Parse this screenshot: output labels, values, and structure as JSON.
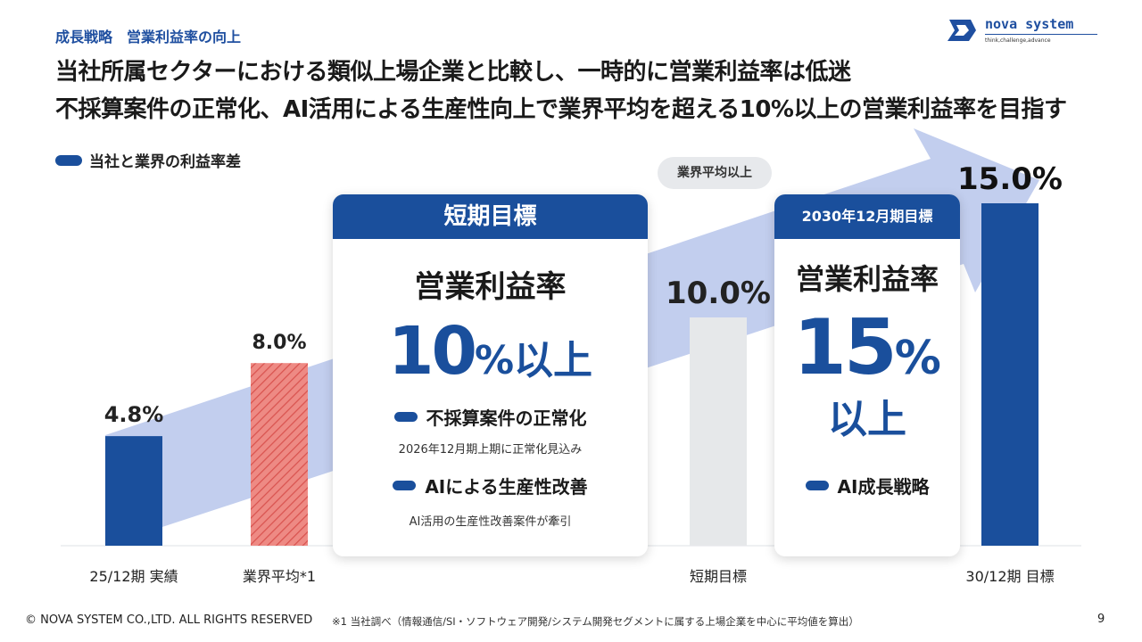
{
  "header": {
    "breadcrumb": "成長戦略　営業利益率の向上",
    "logo_name": "nova system",
    "logo_tagline": "think,challenge,advance",
    "headline_line1": "当社所属セクターにおける類似上場企業と比較し、一時的に営業利益率は低迷",
    "headline_line2": "不採算案件の正常化、AI活用による生産性向上で業界平均を超える10%以上の営業利益率を目指す"
  },
  "legend": {
    "label": "当社と業界の利益率差"
  },
  "badge_avg": "業界平均以上",
  "card_short": {
    "header": "短期目標",
    "title": "営業利益率",
    "big_number": "10",
    "big_suffix": "%以上",
    "item1": "不採算案件の正常化",
    "item1_sub": "2026年12月期上期に正常化見込み",
    "item2": "AIによる生産性改善",
    "item2_sub": "AI活用の生産性改善案件が牽引"
  },
  "card_2030": {
    "header": "2030年12月期目標",
    "title": "営業利益率",
    "big_number": "15",
    "big_percent": "%",
    "big_suffix": "以上",
    "item1": "AI成長戦略"
  },
  "chart_data": {
    "type": "bar",
    "categories": [
      "25/12期 実績",
      "業界平均*1",
      "短期目標",
      "30/12期 目標"
    ],
    "values": [
      4.8,
      8.0,
      10.0,
      15.0
    ],
    "value_labels": [
      "4.8%",
      "8.0%",
      "10.0%",
      "15.0%"
    ],
    "unit": "%",
    "ylim": [
      0,
      15
    ],
    "bar_styles": [
      "solid",
      "hatched",
      "light",
      "solid"
    ],
    "colors": {
      "primary": "#1a4f9c",
      "hatch": "#e36a6a",
      "light": "#e6e8ea",
      "arrow": "#b7c6eb"
    },
    "grid": false
  },
  "footer": {
    "copyright": "© NOVA SYSTEM CO.,LTD. ALL RIGHTS RESERVED",
    "note": "※1 当社調べ（情報通信/SI・ソフトウェア開発/システム開発セグメントに属する上場企業を中心に平均値を算出）",
    "page": "9"
  }
}
